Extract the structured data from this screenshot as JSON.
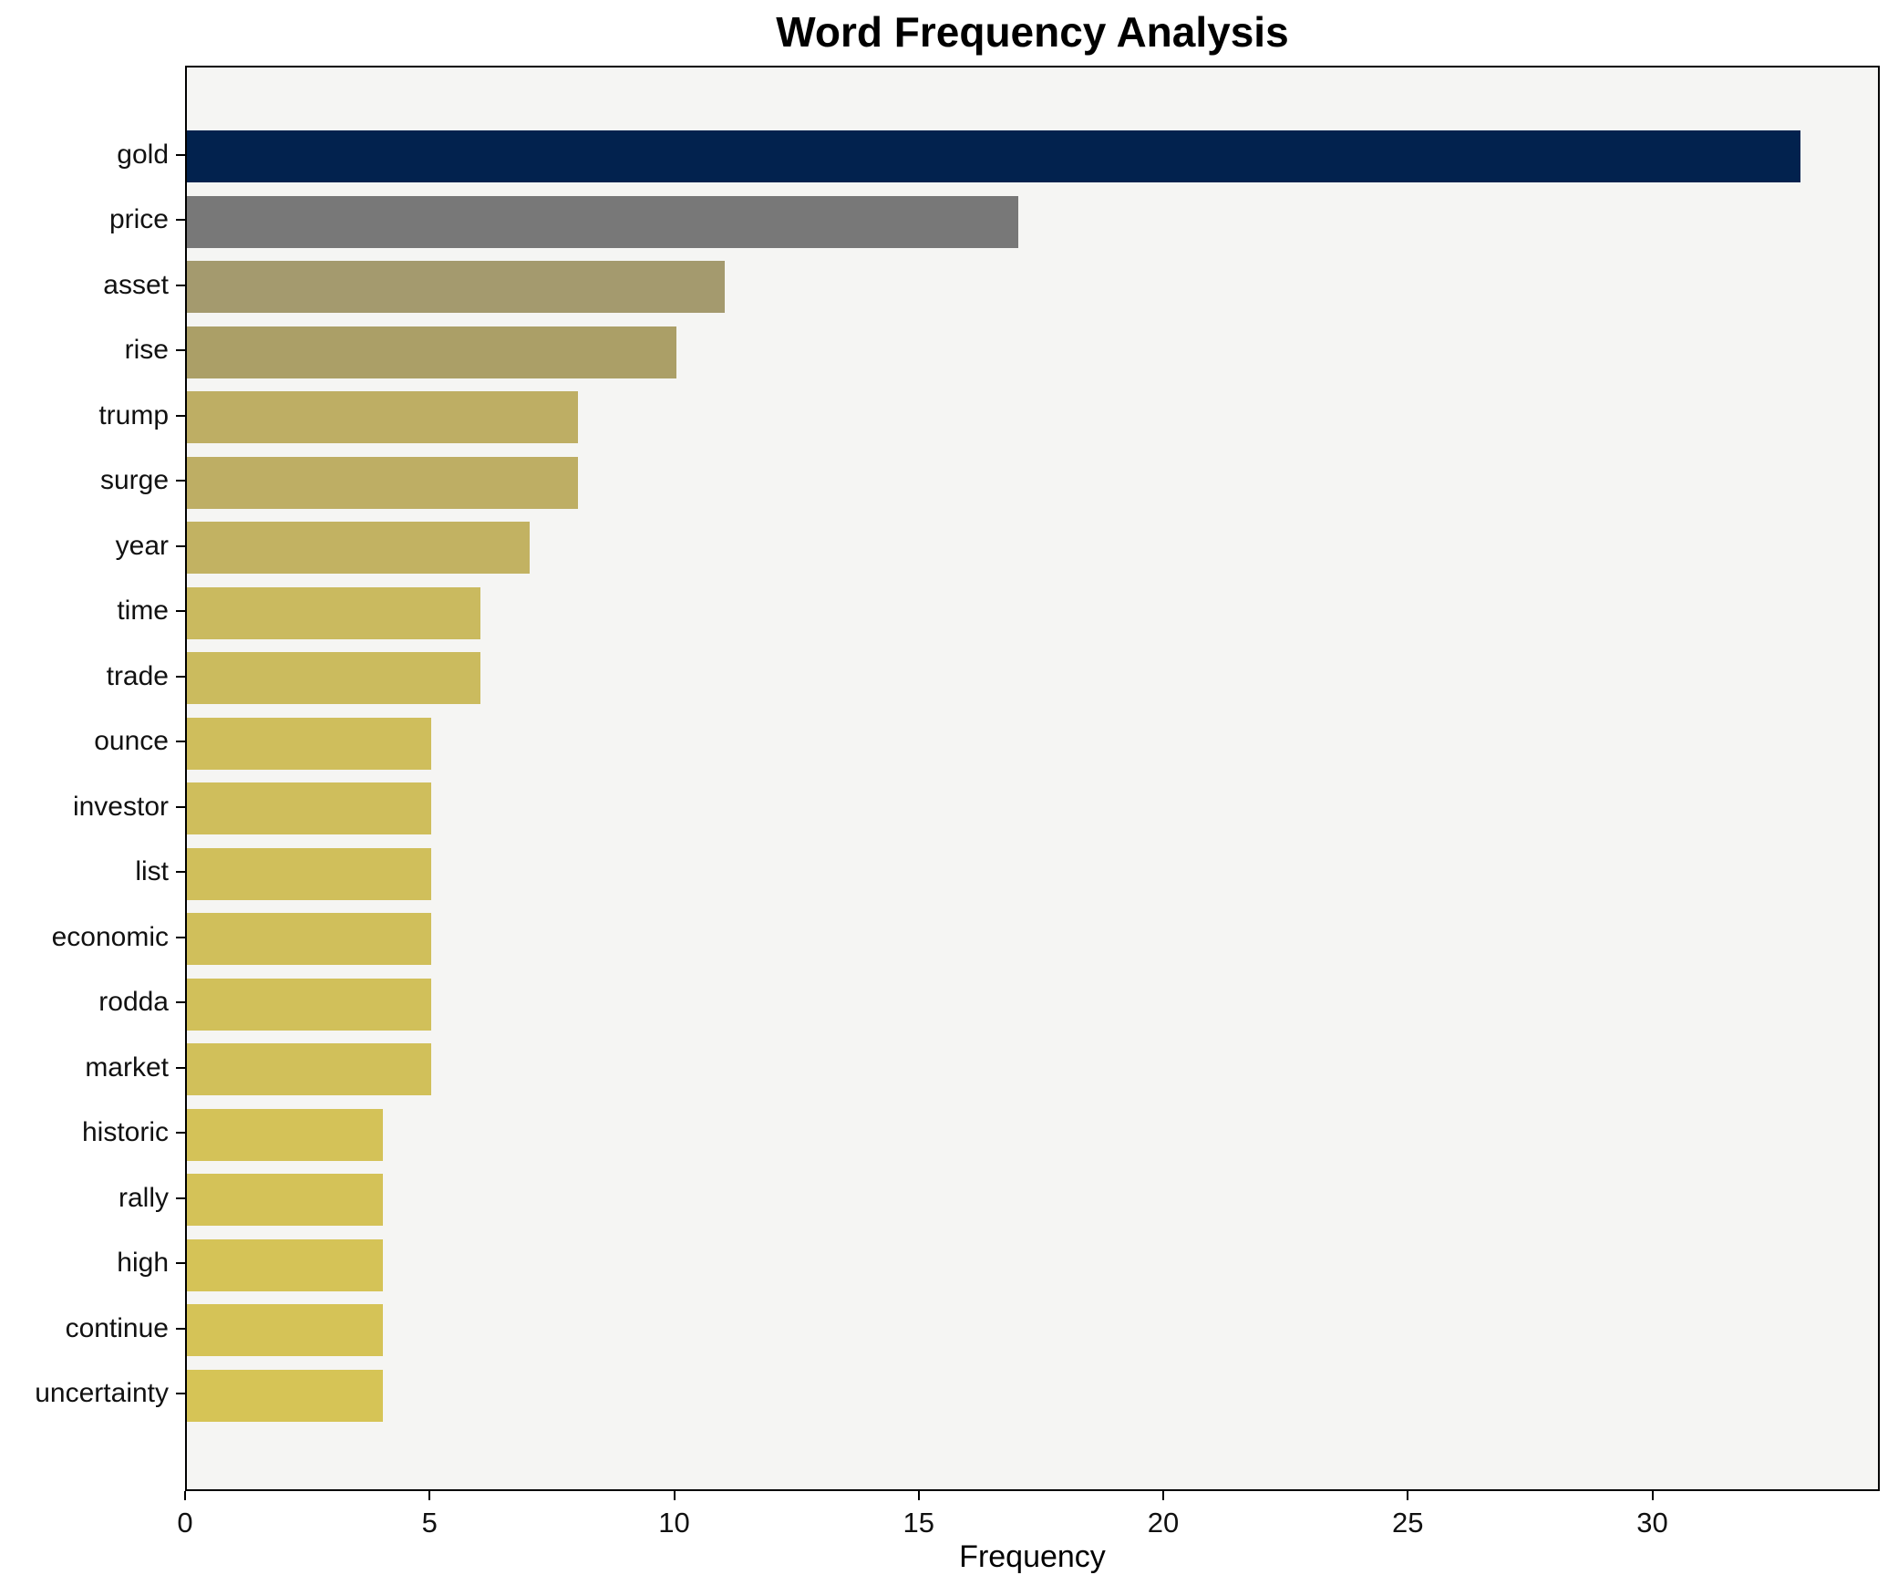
{
  "title": "Word Frequency Analysis",
  "chart_data": {
    "type": "bar",
    "orientation": "horizontal",
    "title": "Word Frequency Analysis",
    "xlabel": "Frequency",
    "ylabel": "",
    "categories": [
      "gold",
      "price",
      "asset",
      "rise",
      "trump",
      "surge",
      "year",
      "time",
      "trade",
      "ounce",
      "investor",
      "list",
      "economic",
      "rodda",
      "market",
      "historic",
      "rally",
      "high",
      "continue",
      "uncertainty"
    ],
    "values": [
      33,
      17,
      11,
      10,
      8,
      8,
      7,
      6,
      6,
      5,
      5,
      5,
      5,
      5,
      5,
      4,
      4,
      4,
      4,
      4
    ],
    "bar_colors": [
      "#02224e",
      "#787878",
      "#a49a6e",
      "#ab9f67",
      "#beae64",
      "#beae64",
      "#c2b262",
      "#caba5f",
      "#cbbb5e",
      "#cfbe5c",
      "#cfbe5c",
      "#d0bf5b",
      "#d0bf5b",
      "#d1c05a",
      "#d1c05a",
      "#d4c258",
      "#d4c258",
      "#d5c357",
      "#d5c357",
      "#d6c456"
    ],
    "xticks": [
      0,
      5,
      10,
      15,
      20,
      25,
      30
    ],
    "xlim": [
      0,
      34.65
    ],
    "grid": false,
    "legend": false,
    "plot_bg": "#f5f5f3",
    "fig_bg": "#ffffff",
    "spine_color": "#000000"
  }
}
